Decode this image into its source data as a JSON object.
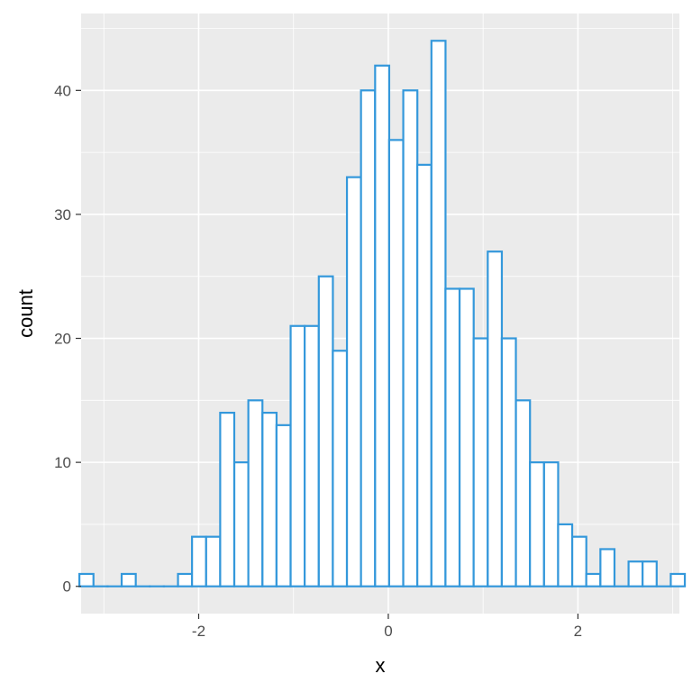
{
  "chart_data": {
    "type": "bar",
    "title": "",
    "xlabel": "x",
    "ylabel": "count",
    "xlim": [
      -3.24,
      3.07
    ],
    "ylim": [
      -2.2,
      46.2
    ],
    "bin_width": 0.1485,
    "bins_x_start": [
      -3.258,
      -3.109,
      -2.961,
      -2.812,
      -2.664,
      -2.515,
      -2.367,
      -2.218,
      -2.07,
      -1.921,
      -1.773,
      -1.624,
      -1.476,
      -1.327,
      -1.179,
      -1.03,
      -0.882,
      -0.733,
      -0.585,
      -0.436,
      -0.288,
      -0.139,
      0.009,
      0.158,
      0.306,
      0.455,
      0.603,
      0.752,
      0.9,
      1.049,
      1.197,
      1.346,
      1.494,
      1.643,
      1.791,
      1.94,
      2.088,
      2.237,
      2.385,
      2.534,
      2.682,
      2.831,
      2.979
    ],
    "values": [
      1,
      0,
      0,
      1,
      0,
      0,
      0,
      1,
      4,
      4,
      14,
      10,
      15,
      14,
      13,
      21,
      21,
      25,
      19,
      33,
      40,
      42,
      36,
      40,
      34,
      44,
      24,
      24,
      20,
      27,
      20,
      15,
      10,
      10,
      5,
      4,
      1,
      3,
      0,
      2,
      2,
      0,
      1
    ],
    "x_ticks": [
      -2,
      0,
      2
    ],
    "x_tick_labels": [
      "-2",
      "0",
      "2"
    ],
    "y_ticks": [
      0,
      10,
      20,
      30,
      40
    ],
    "y_tick_labels": [
      "0",
      "10",
      "20",
      "30",
      "40"
    ],
    "grid": true,
    "colors": {
      "panel_background": "#ebebeb",
      "grid_major": "#ffffff",
      "bar_fill": "#ffffff",
      "bar_outline": "#3498db",
      "tick_label": "#4d4d4d",
      "tick_mark": "#333333"
    }
  }
}
